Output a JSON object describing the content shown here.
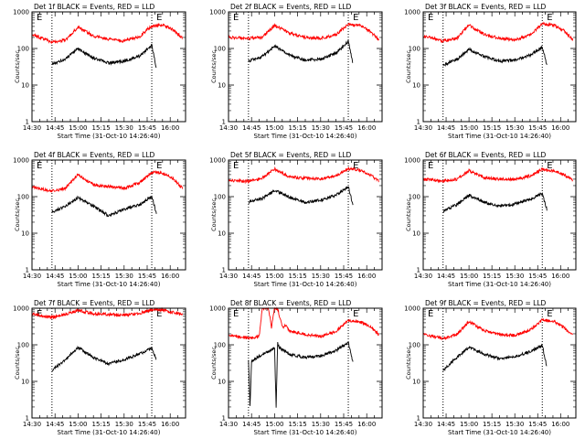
{
  "figure": {
    "ylabel": "Counts/sec",
    "xlabel": "Start Time (31-Oct-10 14:26:40)",
    "x_tick_labels": [
      "14:30",
      "14:45",
      "15:00",
      "15:15",
      "15:30",
      "15:45",
      "16:00"
    ],
    "y_tick_labels": [
      "1",
      "10",
      "100",
      "1000"
    ],
    "marker_letter": "E",
    "colors": {
      "events": "#000000",
      "lld": "#ff0000",
      "background": "#ffffff"
    }
  },
  "chart_data": [
    {
      "type": "line",
      "title": "Det 1f BLACK = Events, RED = LLD",
      "xlim": [
        "14:30",
        "16:10"
      ],
      "ylim": [
        1,
        1000
      ],
      "yscale": "log",
      "vlines": [
        "14:43",
        "15:48"
      ],
      "marker_E": [
        "14:33",
        "15:51"
      ],
      "series": [
        {
          "role": "LLD",
          "color": "#ff0000",
          "x": [
            "14:30",
            "14:43",
            "14:52",
            "15:00",
            "15:10",
            "15:20",
            "15:30",
            "15:40",
            "15:48",
            "15:56",
            "16:02",
            "16:08"
          ],
          "values": [
            240,
            150,
            170,
            390,
            220,
            180,
            160,
            210,
            420,
            430,
            320,
            190
          ]
        },
        {
          "role": "Events",
          "color": "#000000",
          "x": [
            "14:43",
            "14:52",
            "15:00",
            "15:10",
            "15:20",
            "15:30",
            "15:40",
            "15:48",
            "15:51"
          ],
          "values": [
            37,
            52,
            98,
            55,
            40,
            45,
            62,
            120,
            30
          ]
        }
      ]
    },
    {
      "type": "line",
      "title": "Det 2f BLACK = Events, RED = LLD",
      "xlim": [
        "14:30",
        "16:10"
      ],
      "ylim": [
        1,
        1000
      ],
      "yscale": "log",
      "vlines": [
        "14:43",
        "15:48"
      ],
      "marker_E": [
        "14:33",
        "15:51"
      ],
      "series": [
        {
          "role": "LLD",
          "color": "#ff0000",
          "x": [
            "14:30",
            "14:43",
            "14:52",
            "15:00",
            "15:10",
            "15:20",
            "15:30",
            "15:40",
            "15:48",
            "15:56",
            "16:02",
            "16:08"
          ],
          "values": [
            200,
            190,
            200,
            430,
            260,
            200,
            190,
            240,
            460,
            420,
            300,
            170
          ]
        },
        {
          "role": "Events",
          "color": "#000000",
          "x": [
            "14:43",
            "14:52",
            "15:00",
            "15:10",
            "15:20",
            "15:30",
            "15:40",
            "15:48",
            "15:51"
          ],
          "values": [
            45,
            60,
            115,
            65,
            48,
            52,
            75,
            155,
            40
          ]
        }
      ]
    },
    {
      "type": "line",
      "title": "Det 3f BLACK = Events, RED = LLD",
      "xlim": [
        "14:30",
        "16:10"
      ],
      "ylim": [
        1,
        1000
      ],
      "yscale": "log",
      "vlines": [
        "14:43",
        "15:48"
      ],
      "marker_E": [
        "14:33",
        "15:51"
      ],
      "series": [
        {
          "role": "LLD",
          "color": "#ff0000",
          "x": [
            "14:30",
            "14:43",
            "14:52",
            "15:00",
            "15:10",
            "15:20",
            "15:30",
            "15:40",
            "15:48",
            "15:56",
            "16:02",
            "16:08"
          ],
          "values": [
            220,
            160,
            190,
            430,
            240,
            190,
            170,
            230,
            470,
            430,
            310,
            180
          ]
        },
        {
          "role": "Events",
          "color": "#000000",
          "x": [
            "14:43",
            "14:52",
            "15:00",
            "15:10",
            "15:20",
            "15:30",
            "15:40",
            "15:48",
            "15:51"
          ],
          "values": [
            35,
            50,
            95,
            60,
            45,
            48,
            65,
            110,
            35
          ]
        }
      ]
    },
    {
      "type": "line",
      "title": "Det 4f BLACK = Events, RED = LLD",
      "xlim": [
        "14:30",
        "16:10"
      ],
      "ylim": [
        1,
        1000
      ],
      "yscale": "log",
      "vlines": [
        "14:43",
        "15:48"
      ],
      "marker_E": [
        "14:33",
        "15:51"
      ],
      "series": [
        {
          "role": "LLD",
          "color": "#ff0000",
          "x": [
            "14:30",
            "14:43",
            "14:52",
            "15:00",
            "15:10",
            "15:20",
            "15:30",
            "15:40",
            "15:48",
            "15:56",
            "16:02",
            "16:08"
          ],
          "values": [
            190,
            140,
            170,
            410,
            210,
            190,
            170,
            240,
            460,
            430,
            300,
            170
          ]
        },
        {
          "role": "Events",
          "color": "#000000",
          "x": [
            "14:43",
            "14:52",
            "15:00",
            "15:10",
            "15:20",
            "15:30",
            "15:40",
            "15:48",
            "15:51"
          ],
          "values": [
            38,
            55,
            95,
            55,
            30,
            45,
            60,
            100,
            35
          ]
        }
      ]
    },
    {
      "type": "line",
      "title": "Det 5f BLACK = Events, RED = LLD",
      "xlim": [
        "14:30",
        "16:10"
      ],
      "ylim": [
        1,
        1000
      ],
      "yscale": "log",
      "vlines": [
        "14:43",
        "15:48"
      ],
      "marker_E": [
        "14:33",
        "15:51"
      ],
      "series": [
        {
          "role": "LLD",
          "color": "#ff0000",
          "x": [
            "14:30",
            "14:43",
            "14:52",
            "15:00",
            "15:10",
            "15:20",
            "15:30",
            "15:40",
            "15:48",
            "15:56",
            "16:02",
            "16:08"
          ],
          "values": [
            280,
            260,
            320,
            570,
            340,
            320,
            300,
            380,
            580,
            520,
            400,
            270
          ]
        },
        {
          "role": "Events",
          "color": "#000000",
          "x": [
            "14:43",
            "14:52",
            "15:00",
            "15:10",
            "15:20",
            "15:30",
            "15:40",
            "15:48",
            "15:51"
          ],
          "values": [
            70,
            90,
            150,
            95,
            70,
            80,
            110,
            190,
            60
          ]
        }
      ]
    },
    {
      "type": "line",
      "title": "Det 6f BLACK = Events, RED = LLD",
      "xlim": [
        "14:30",
        "16:10"
      ],
      "ylim": [
        1,
        1000
      ],
      "yscale": "log",
      "vlines": [
        "14:43",
        "15:48"
      ],
      "marker_E": [
        "14:33",
        "15:51"
      ],
      "series": [
        {
          "role": "LLD",
          "color": "#ff0000",
          "x": [
            "14:30",
            "14:43",
            "14:52",
            "15:00",
            "15:10",
            "15:20",
            "15:30",
            "15:40",
            "15:48",
            "15:56",
            "16:02",
            "16:08"
          ],
          "values": [
            300,
            270,
            300,
            520,
            330,
            300,
            290,
            370,
            560,
            490,
            400,
            290
          ]
        },
        {
          "role": "Events",
          "color": "#000000",
          "x": [
            "14:43",
            "14:52",
            "15:00",
            "15:10",
            "15:20",
            "15:30",
            "15:40",
            "15:48",
            "15:51"
          ],
          "values": [
            40,
            60,
            110,
            70,
            55,
            62,
            85,
            120,
            45
          ]
        }
      ]
    },
    {
      "type": "line",
      "title": "Det 7f BLACK = Events, RED = LLD",
      "xlim": [
        "14:30",
        "16:10"
      ],
      "ylim": [
        1,
        1000
      ],
      "yscale": "log",
      "vlines": [
        "14:43",
        "15:48"
      ],
      "marker_E": [
        "14:33",
        "15:51"
      ],
      "series": [
        {
          "role": "LLD",
          "color": "#ff0000",
          "x": [
            "14:30",
            "14:43",
            "14:52",
            "15:00",
            "15:10",
            "15:20",
            "15:30",
            "15:40",
            "15:48",
            "15:56",
            "16:02",
            "16:08"
          ],
          "values": [
            700,
            560,
            680,
            880,
            700,
            680,
            650,
            720,
            930,
            880,
            760,
            690
          ]
        },
        {
          "role": "Events",
          "color": "#000000",
          "x": [
            "14:43",
            "14:52",
            "15:00",
            "15:10",
            "15:20",
            "15:30",
            "15:40",
            "15:48",
            "15:51"
          ],
          "values": [
            20,
            40,
            85,
            45,
            30,
            40,
            55,
            80,
            40
          ]
        }
      ]
    },
    {
      "type": "line",
      "title": "Det 8f BLACK = Events, RED = LLD",
      "xlim": [
        "14:30",
        "16:10"
      ],
      "ylim": [
        1,
        1000
      ],
      "yscale": "log",
      "vlines": [
        "14:43",
        "15:48"
      ],
      "marker_E": [
        "14:33",
        "15:51"
      ],
      "series": [
        {
          "role": "LLD",
          "color": "#ff0000",
          "x": [
            "14:30",
            "14:43",
            "14:50",
            "14:52",
            "14:56",
            "14:58",
            "15:00",
            "15:02",
            "15:05",
            "15:07",
            "15:10",
            "15:20",
            "15:30",
            "15:40",
            "15:48",
            "15:56",
            "16:02",
            "16:08"
          ],
          "values": [
            190,
            150,
            170,
            1000,
            1000,
            300,
            1000,
            1000,
            300,
            340,
            240,
            190,
            170,
            230,
            460,
            420,
            320,
            190
          ]
        },
        {
          "role": "Events",
          "color": "#000000",
          "x": [
            "14:43",
            "14:44",
            "14:45",
            "14:52",
            "15:00",
            "15:01",
            "15:02",
            "15:03",
            "15:10",
            "15:20",
            "15:30",
            "15:40",
            "15:48",
            "15:51"
          ],
          "values": [
            40,
            2,
            35,
            55,
            80,
            2,
            110,
            85,
            55,
            45,
            50,
            70,
            115,
            35
          ]
        }
      ]
    },
    {
      "type": "line",
      "title": "Det 9f BLACK = Events, RED = LLD",
      "xlim": [
        "14:30",
        "16:10"
      ],
      "ylim": [
        1,
        1000
      ],
      "yscale": "log",
      "vlines": [
        "14:43",
        "15:48"
      ],
      "marker_E": [
        "14:33",
        "15:51"
      ],
      "series": [
        {
          "role": "LLD",
          "color": "#ff0000",
          "x": [
            "14:30",
            "14:43",
            "14:52",
            "15:00",
            "15:10",
            "15:20",
            "15:30",
            "15:40",
            "15:48",
            "15:56",
            "16:02",
            "16:08"
          ],
          "values": [
            190,
            150,
            190,
            440,
            240,
            190,
            180,
            250,
            480,
            430,
            300,
            180
          ]
        },
        {
          "role": "Events",
          "color": "#000000",
          "x": [
            "14:43",
            "14:52",
            "15:00",
            "15:10",
            "15:20",
            "15:30",
            "15:40",
            "15:48",
            "15:51"
          ],
          "values": [
            20,
            45,
            85,
            55,
            42,
            48,
            65,
            95,
            25
          ]
        }
      ]
    }
  ]
}
